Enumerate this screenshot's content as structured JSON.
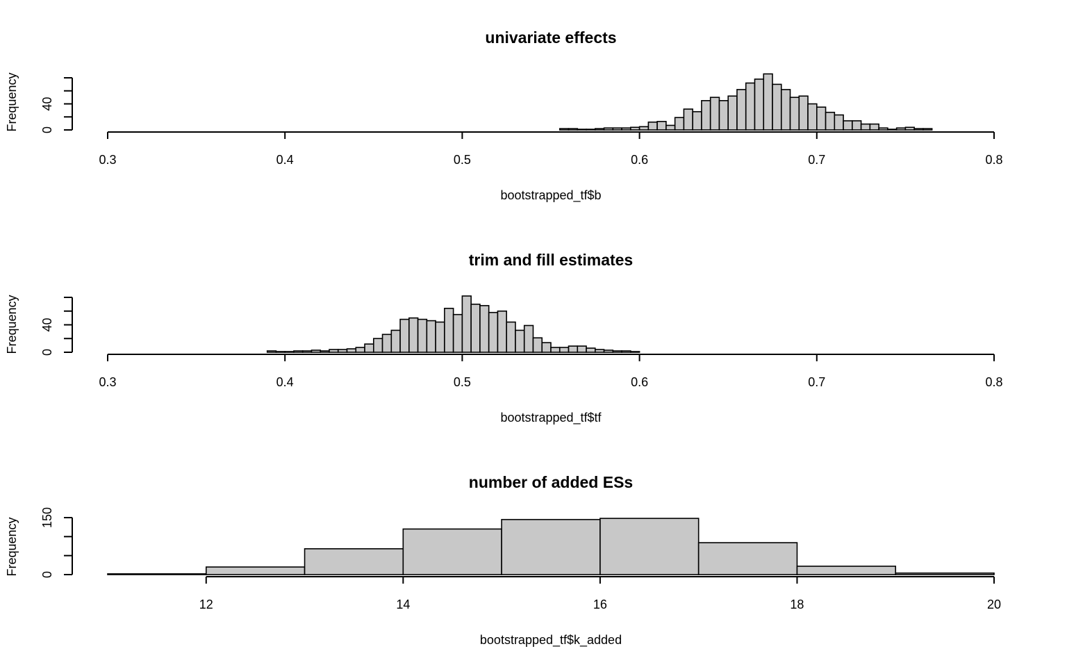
{
  "chart_data": [
    {
      "type": "bar",
      "subtype": "histogram",
      "title": "univariate effects",
      "xlabel": "bootstrapped_tf$b",
      "ylabel": "Frequency",
      "xlim": [
        0.3,
        0.8
      ],
      "ylim": [
        0,
        80
      ],
      "x_ticks": [
        0.3,
        0.4,
        0.5,
        0.6,
        0.7,
        0.8
      ],
      "y_ticks": [
        0,
        40
      ],
      "y_minor_ticks": [
        20,
        60,
        80
      ],
      "bin_start": 0.555,
      "bin_width": 0.005,
      "values": [
        2,
        2,
        1,
        1,
        2,
        3,
        3,
        3,
        4,
        5,
        12,
        13,
        7,
        19,
        32,
        28,
        45,
        50,
        45,
        52,
        62,
        72,
        78,
        86,
        70,
        62,
        50,
        52,
        40,
        35,
        27,
        23,
        14,
        14,
        9,
        9,
        3,
        1,
        3,
        4,
        2,
        2
      ]
    },
    {
      "type": "bar",
      "subtype": "histogram",
      "title": "trim and fill estimates",
      "xlabel": "bootstrapped_tf$tf",
      "ylabel": "Frequency",
      "xlim": [
        0.3,
        0.8
      ],
      "ylim": [
        0,
        80
      ],
      "x_ticks": [
        0.3,
        0.4,
        0.5,
        0.6,
        0.7,
        0.8
      ],
      "y_ticks": [
        0,
        40
      ],
      "y_minor_ticks": [
        20,
        60,
        80
      ],
      "bin_start": 0.39,
      "bin_width": 0.005,
      "values": [
        2,
        1,
        1,
        2,
        2,
        3,
        2,
        4,
        4,
        5,
        7,
        12,
        20,
        26,
        32,
        48,
        50,
        48,
        46,
        44,
        64,
        55,
        82,
        70,
        68,
        58,
        60,
        44,
        32,
        39,
        21,
        14,
        7,
        7,
        9,
        9,
        6,
        4,
        3,
        2,
        2,
        1
      ]
    },
    {
      "type": "bar",
      "subtype": "histogram",
      "title": "number of added ESs",
      "xlabel": "bootstrapped_tf$k_added",
      "ylabel": "Frequency",
      "xlim": [
        11,
        20
      ],
      "ylim": [
        0,
        150
      ],
      "x_ticks": [
        12,
        14,
        16,
        18,
        20
      ],
      "y_ticks": [
        0,
        150
      ],
      "y_minor_ticks": [
        50,
        100
      ],
      "bin_start": 11,
      "bin_width": 1,
      "values": [
        2,
        20,
        68,
        120,
        145,
        148,
        84,
        22,
        4
      ]
    }
  ]
}
